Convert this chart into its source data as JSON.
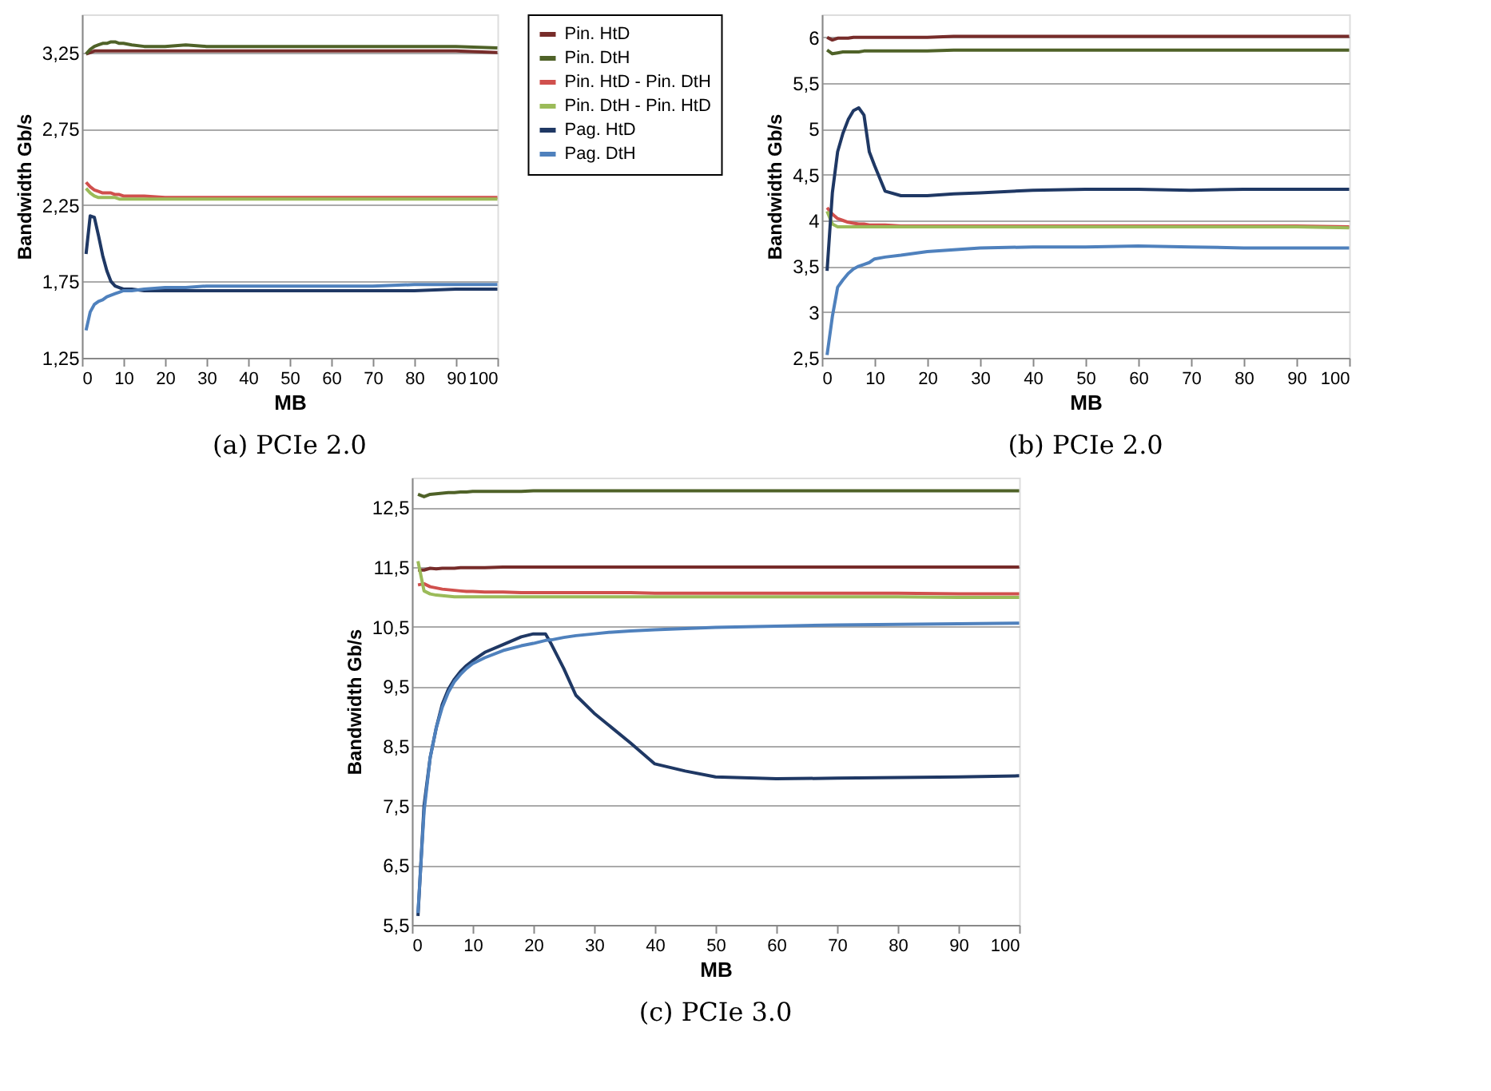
{
  "chart_data": [
    {
      "type": "line",
      "title": "(a) PCIe 2.0",
      "xlabel": "MB",
      "ylabel": "Bandwidth Gb/s",
      "legend": "right",
      "grid": "y",
      "marker": "none",
      "line_style": "solid",
      "x": [
        1,
        2,
        3,
        4,
        5,
        6,
        7,
        8,
        9,
        10,
        12,
        15,
        20,
        25,
        30,
        40,
        50,
        60,
        70,
        80,
        90,
        100
      ],
      "xlim": [
        0,
        100
      ],
      "xticks": [
        0,
        10,
        20,
        30,
        40,
        50,
        60,
        70,
        80,
        90,
        100
      ],
      "ylim": [
        1.25,
        3.5
      ],
      "yticks": [
        {
          "value": 1.25,
          "label": "1,25"
        },
        {
          "value": 1.75,
          "label": "1,75"
        },
        {
          "value": 2.25,
          "label": "2,25"
        },
        {
          "value": 2.75,
          "label": "2,75"
        },
        {
          "value": 3.25,
          "label": "3,25"
        }
      ],
      "series": [
        {
          "name": "Pin. HtD",
          "color": "#772c2a",
          "values": [
            3.24,
            3.25,
            3.26,
            3.26,
            3.26,
            3.26,
            3.26,
            3.26,
            3.26,
            3.26,
            3.26,
            3.26,
            3.26,
            3.26,
            3.26,
            3.26,
            3.26,
            3.26,
            3.26,
            3.26,
            3.26,
            3.25
          ]
        },
        {
          "name": "Pin. DtH",
          "color": "#4f6228",
          "values": [
            3.24,
            3.27,
            3.29,
            3.3,
            3.31,
            3.31,
            3.32,
            3.32,
            3.31,
            3.31,
            3.3,
            3.29,
            3.29,
            3.3,
            3.29,
            3.29,
            3.29,
            3.29,
            3.29,
            3.29,
            3.29,
            3.28
          ]
        },
        {
          "name": "Pin. HtD - Pin. DtH",
          "color": "#d0504d",
          "values": [
            2.4,
            2.37,
            2.35,
            2.34,
            2.33,
            2.33,
            2.33,
            2.32,
            2.32,
            2.31,
            2.31,
            2.31,
            2.3,
            2.3,
            2.3,
            2.3,
            2.3,
            2.3,
            2.3,
            2.3,
            2.3,
            2.3
          ]
        },
        {
          "name": "Pin. DtH - Pin. HtD",
          "color": "#9bbb59",
          "values": [
            2.36,
            2.33,
            2.31,
            2.3,
            2.3,
            2.3,
            2.3,
            2.3,
            2.29,
            2.29,
            2.29,
            2.29,
            2.29,
            2.29,
            2.29,
            2.29,
            2.29,
            2.29,
            2.29,
            2.29,
            2.29,
            2.29
          ]
        },
        {
          "name": "Pag. HtD",
          "color": "#1f3864",
          "values": [
            1.93,
            2.18,
            2.17,
            2.05,
            1.92,
            1.82,
            1.75,
            1.72,
            1.71,
            1.7,
            1.7,
            1.69,
            1.69,
            1.69,
            1.69,
            1.69,
            1.69,
            1.69,
            1.69,
            1.69,
            1.7,
            1.7
          ]
        },
        {
          "name": "Pag. DtH",
          "color": "#4f81bd",
          "values": [
            1.43,
            1.55,
            1.6,
            1.62,
            1.63,
            1.65,
            1.66,
            1.67,
            1.68,
            1.69,
            1.69,
            1.7,
            1.71,
            1.71,
            1.72,
            1.72,
            1.72,
            1.72,
            1.72,
            1.73,
            1.73,
            1.73
          ]
        }
      ]
    },
    {
      "type": "line",
      "title": "(b) PCIe 2.0",
      "xlabel": "MB",
      "ylabel": "Bandwidth Gb/s",
      "grid": "y",
      "marker": "none",
      "line_style": "solid",
      "x": [
        1,
        2,
        3,
        4,
        5,
        6,
        7,
        8,
        9,
        10,
        12,
        15,
        20,
        25,
        30,
        40,
        50,
        60,
        70,
        80,
        90,
        100
      ],
      "xlim": [
        0,
        100
      ],
      "xticks": [
        0,
        10,
        20,
        30,
        40,
        50,
        60,
        70,
        80,
        90,
        100
      ],
      "ylim": [
        2.5,
        6.25
      ],
      "yticks": [
        {
          "value": 2.5,
          "label": "2,5"
        },
        3,
        {
          "value": 3.5,
          "label": "3,5"
        },
        4,
        {
          "value": 4.5,
          "label": "4,5"
        },
        5,
        {
          "value": 5.5,
          "label": "5,5"
        },
        6
      ],
      "series": [
        {
          "color": "#772c2a",
          "values": [
            6.0,
            5.97,
            5.99,
            5.99,
            5.99,
            6.0,
            6.0,
            6.0,
            6.0,
            6.0,
            6.0,
            6.0,
            6.0,
            6.01,
            6.01,
            6.01,
            6.01,
            6.01,
            6.01,
            6.01,
            6.01,
            6.01
          ]
        },
        {
          "color": "#4f6228",
          "values": [
            5.86,
            5.82,
            5.83,
            5.84,
            5.84,
            5.84,
            5.84,
            5.85,
            5.85,
            5.85,
            5.85,
            5.85,
            5.85,
            5.86,
            5.86,
            5.86,
            5.86,
            5.86,
            5.86,
            5.86,
            5.86,
            5.86
          ]
        },
        {
          "color": "#d0504d",
          "values": [
            4.14,
            4.07,
            4.02,
            4.0,
            3.98,
            3.97,
            3.96,
            3.96,
            3.95,
            3.95,
            3.95,
            3.94,
            3.94,
            3.94,
            3.94,
            3.94,
            3.94,
            3.94,
            3.94,
            3.94,
            3.94,
            3.93
          ]
        },
        {
          "color": "#9bbb59",
          "values": [
            4.1,
            3.96,
            3.93,
            3.93,
            3.93,
            3.93,
            3.93,
            3.93,
            3.93,
            3.93,
            3.93,
            3.93,
            3.93,
            3.93,
            3.93,
            3.93,
            3.93,
            3.93,
            3.93,
            3.93,
            3.93,
            3.92
          ]
        },
        {
          "color": "#1f3864",
          "values": [
            3.45,
            4.3,
            4.75,
            4.95,
            5.1,
            5.2,
            5.23,
            5.15,
            4.75,
            4.6,
            4.32,
            4.27,
            4.27,
            4.29,
            4.3,
            4.33,
            4.34,
            4.34,
            4.33,
            4.34,
            4.34,
            4.34
          ]
        },
        {
          "color": "#4f81bd",
          "values": [
            2.53,
            2.95,
            3.27,
            3.35,
            3.42,
            3.47,
            3.5,
            3.52,
            3.54,
            3.58,
            3.6,
            3.62,
            3.66,
            3.68,
            3.7,
            3.71,
            3.71,
            3.72,
            3.71,
            3.7,
            3.7,
            3.7
          ]
        }
      ]
    },
    {
      "type": "line",
      "title": "(c) PCIe 3.0",
      "xlabel": "MB",
      "ylabel": "Bandwidth Gb/s",
      "grid": "y",
      "marker": "none",
      "line_style": "solid",
      "x": [
        1,
        2,
        3,
        4,
        5,
        6,
        7,
        8,
        9,
        10,
        12,
        15,
        18,
        20,
        22,
        23,
        25,
        27,
        30,
        33,
        36,
        40,
        45,
        50,
        60,
        70,
        80,
        90,
        100
      ],
      "xlim": [
        0,
        100
      ],
      "xticks": [
        0,
        10,
        20,
        30,
        40,
        50,
        60,
        70,
        80,
        90,
        100
      ],
      "ylim": [
        5.5,
        13
      ],
      "yticks": [
        {
          "value": 5.5,
          "label": "5,5"
        },
        {
          "value": 6.5,
          "label": "6,5"
        },
        {
          "value": 7.5,
          "label": "7,5"
        },
        {
          "value": 8.5,
          "label": "8,5"
        },
        {
          "value": 9.5,
          "label": "9,5"
        },
        {
          "value": 10.5,
          "label": "10,5"
        },
        {
          "value": 11.5,
          "label": "11,5"
        },
        {
          "value": 12.5,
          "label": "12,5"
        }
      ],
      "series": [
        {
          "color": "#772c2a",
          "values": [
            11.45,
            11.45,
            11.48,
            11.47,
            11.48,
            11.48,
            11.48,
            11.49,
            11.49,
            11.49,
            11.49,
            11.5,
            11.5,
            11.5,
            11.5,
            11.5,
            11.5,
            11.5,
            11.5,
            11.5,
            11.5,
            11.5,
            11.5,
            11.5,
            11.5,
            11.5,
            11.5,
            11.5,
            11.5
          ]
        },
        {
          "color": "#4f6228",
          "values": [
            12.72,
            12.68,
            12.72,
            12.73,
            12.74,
            12.75,
            12.75,
            12.76,
            12.76,
            12.77,
            12.77,
            12.77,
            12.77,
            12.78,
            12.78,
            12.78,
            12.78,
            12.78,
            12.78,
            12.78,
            12.78,
            12.78,
            12.78,
            12.78,
            12.78,
            12.78,
            12.78,
            12.78,
            12.78
          ]
        },
        {
          "color": "#d0504d",
          "values": [
            11.2,
            11.22,
            11.17,
            11.15,
            11.13,
            11.12,
            11.11,
            11.1,
            11.09,
            11.09,
            11.08,
            11.08,
            11.07,
            11.07,
            11.07,
            11.07,
            11.07,
            11.07,
            11.07,
            11.07,
            11.07,
            11.06,
            11.06,
            11.06,
            11.06,
            11.06,
            11.06,
            11.05,
            11.05
          ]
        },
        {
          "color": "#9bbb59",
          "values": [
            11.6,
            11.1,
            11.05,
            11.03,
            11.02,
            11.01,
            11.0,
            11.0,
            11.0,
            11.0,
            11.0,
            11.0,
            11.0,
            11.0,
            11.0,
            11.0,
            11.0,
            11.0,
            11.0,
            11.0,
            11.0,
            11.0,
            11.0,
            11.0,
            11.0,
            11.0,
            11.0,
            10.99,
            10.99
          ]
        },
        {
          "color": "#1f3864",
          "values": [
            5.65,
            7.5,
            8.3,
            8.8,
            9.2,
            9.45,
            9.62,
            9.75,
            9.85,
            9.93,
            10.07,
            10.2,
            10.33,
            10.38,
            10.38,
            10.2,
            9.8,
            9.35,
            9.05,
            8.8,
            8.55,
            8.2,
            8.08,
            7.98,
            7.95,
            7.96,
            7.97,
            7.98,
            8.0
          ]
        },
        {
          "color": "#4f81bd",
          "values": [
            5.7,
            7.4,
            8.3,
            8.8,
            9.15,
            9.4,
            9.58,
            9.7,
            9.8,
            9.88,
            9.98,
            10.1,
            10.18,
            10.22,
            10.27,
            10.28,
            10.32,
            10.35,
            10.38,
            10.41,
            10.43,
            10.45,
            10.47,
            10.49,
            10.51,
            10.53,
            10.54,
            10.55,
            10.56
          ]
        }
      ]
    }
  ]
}
